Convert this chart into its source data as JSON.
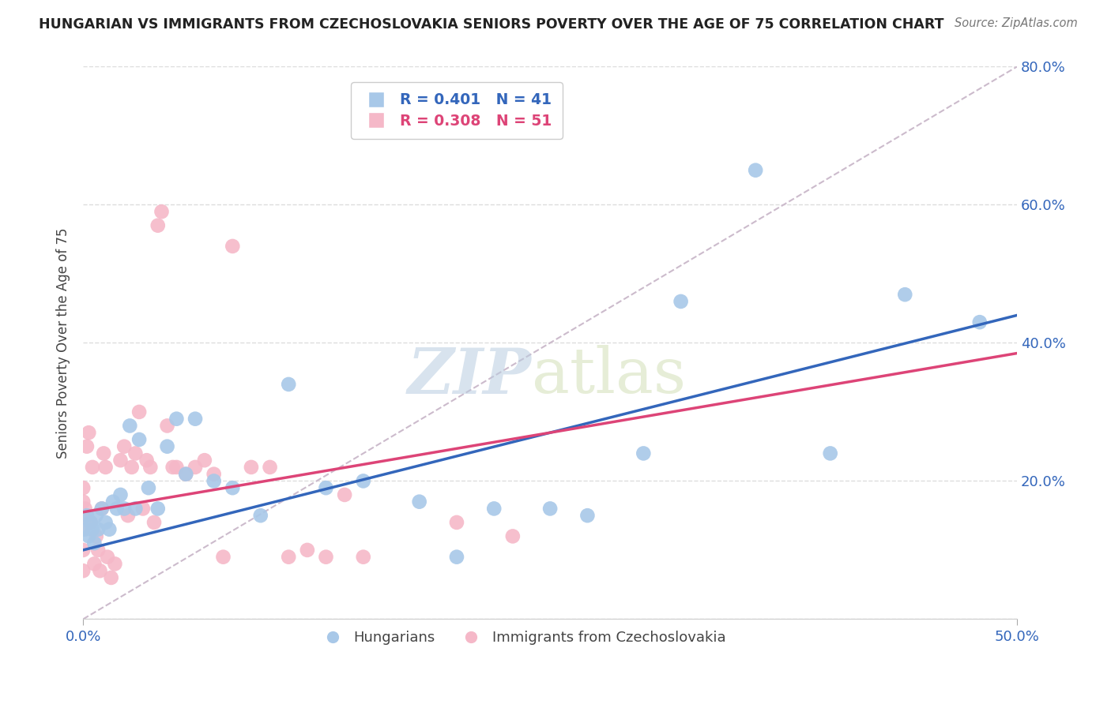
{
  "title": "HUNGARIAN VS IMMIGRANTS FROM CZECHOSLOVAKIA SENIORS POVERTY OVER THE AGE OF 75 CORRELATION CHART",
  "source": "Source: ZipAtlas.com",
  "ylabel": "Seniors Poverty Over the Age of 75",
  "xlim": [
    0.0,
    0.5
  ],
  "ylim": [
    0.0,
    0.8
  ],
  "xlabel_ticks": [
    0.0,
    0.5
  ],
  "xlabel_labels": [
    "0.0%",
    "50.0%"
  ],
  "ylabel_ticks": [
    0.0,
    0.2,
    0.4,
    0.6,
    0.8
  ],
  "ylabel_labels": [
    "",
    "20.0%",
    "40.0%",
    "60.0%",
    "80.0%"
  ],
  "blue_color": "#A8C8E8",
  "pink_color": "#F5B8C8",
  "blue_line_color": "#3366BB",
  "pink_line_color": "#DD4477",
  "diag_color": "#CCBBCC",
  "legend_label_blue": "Hungarians",
  "legend_label_pink": "Immigrants from Czechoslovakia",
  "blue_R": 0.401,
  "pink_R": 0.308,
  "blue_N": 41,
  "pink_N": 51,
  "blue_scatter_x": [
    0.001,
    0.002,
    0.003,
    0.004,
    0.005,
    0.006,
    0.007,
    0.008,
    0.01,
    0.012,
    0.014,
    0.016,
    0.018,
    0.02,
    0.022,
    0.025,
    0.028,
    0.03,
    0.035,
    0.04,
    0.045,
    0.05,
    0.055,
    0.06,
    0.07,
    0.08,
    0.095,
    0.11,
    0.13,
    0.15,
    0.18,
    0.2,
    0.22,
    0.25,
    0.27,
    0.3,
    0.32,
    0.36,
    0.4,
    0.44,
    0.48
  ],
  "blue_scatter_y": [
    0.13,
    0.15,
    0.12,
    0.14,
    0.13,
    0.11,
    0.15,
    0.13,
    0.16,
    0.14,
    0.13,
    0.17,
    0.16,
    0.18,
    0.16,
    0.28,
    0.16,
    0.26,
    0.19,
    0.16,
    0.25,
    0.29,
    0.21,
    0.29,
    0.2,
    0.19,
    0.15,
    0.34,
    0.19,
    0.2,
    0.17,
    0.09,
    0.16,
    0.16,
    0.15,
    0.24,
    0.46,
    0.65,
    0.24,
    0.47,
    0.43
  ],
  "pink_scatter_x": [
    0.0,
    0.0,
    0.0,
    0.0,
    0.0,
    0.0,
    0.001,
    0.002,
    0.003,
    0.004,
    0.005,
    0.006,
    0.007,
    0.008,
    0.009,
    0.01,
    0.011,
    0.012,
    0.013,
    0.015,
    0.017,
    0.02,
    0.022,
    0.024,
    0.026,
    0.028,
    0.03,
    0.032,
    0.034,
    0.036,
    0.038,
    0.04,
    0.042,
    0.045,
    0.048,
    0.05,
    0.055,
    0.06,
    0.065,
    0.07,
    0.075,
    0.08,
    0.09,
    0.1,
    0.11,
    0.12,
    0.13,
    0.14,
    0.15,
    0.2,
    0.23
  ],
  "pink_scatter_y": [
    0.13,
    0.15,
    0.17,
    0.19,
    0.1,
    0.07,
    0.16,
    0.25,
    0.27,
    0.14,
    0.22,
    0.08,
    0.12,
    0.1,
    0.07,
    0.16,
    0.24,
    0.22,
    0.09,
    0.06,
    0.08,
    0.23,
    0.25,
    0.15,
    0.22,
    0.24,
    0.3,
    0.16,
    0.23,
    0.22,
    0.14,
    0.57,
    0.59,
    0.28,
    0.22,
    0.22,
    0.21,
    0.22,
    0.23,
    0.21,
    0.09,
    0.54,
    0.22,
    0.22,
    0.09,
    0.1,
    0.09,
    0.18,
    0.09,
    0.14,
    0.12
  ],
  "watermark_zip": "ZIP",
  "watermark_atlas": "atlas",
  "background_color": "#FFFFFF",
  "grid_color": "#DDDDDD"
}
